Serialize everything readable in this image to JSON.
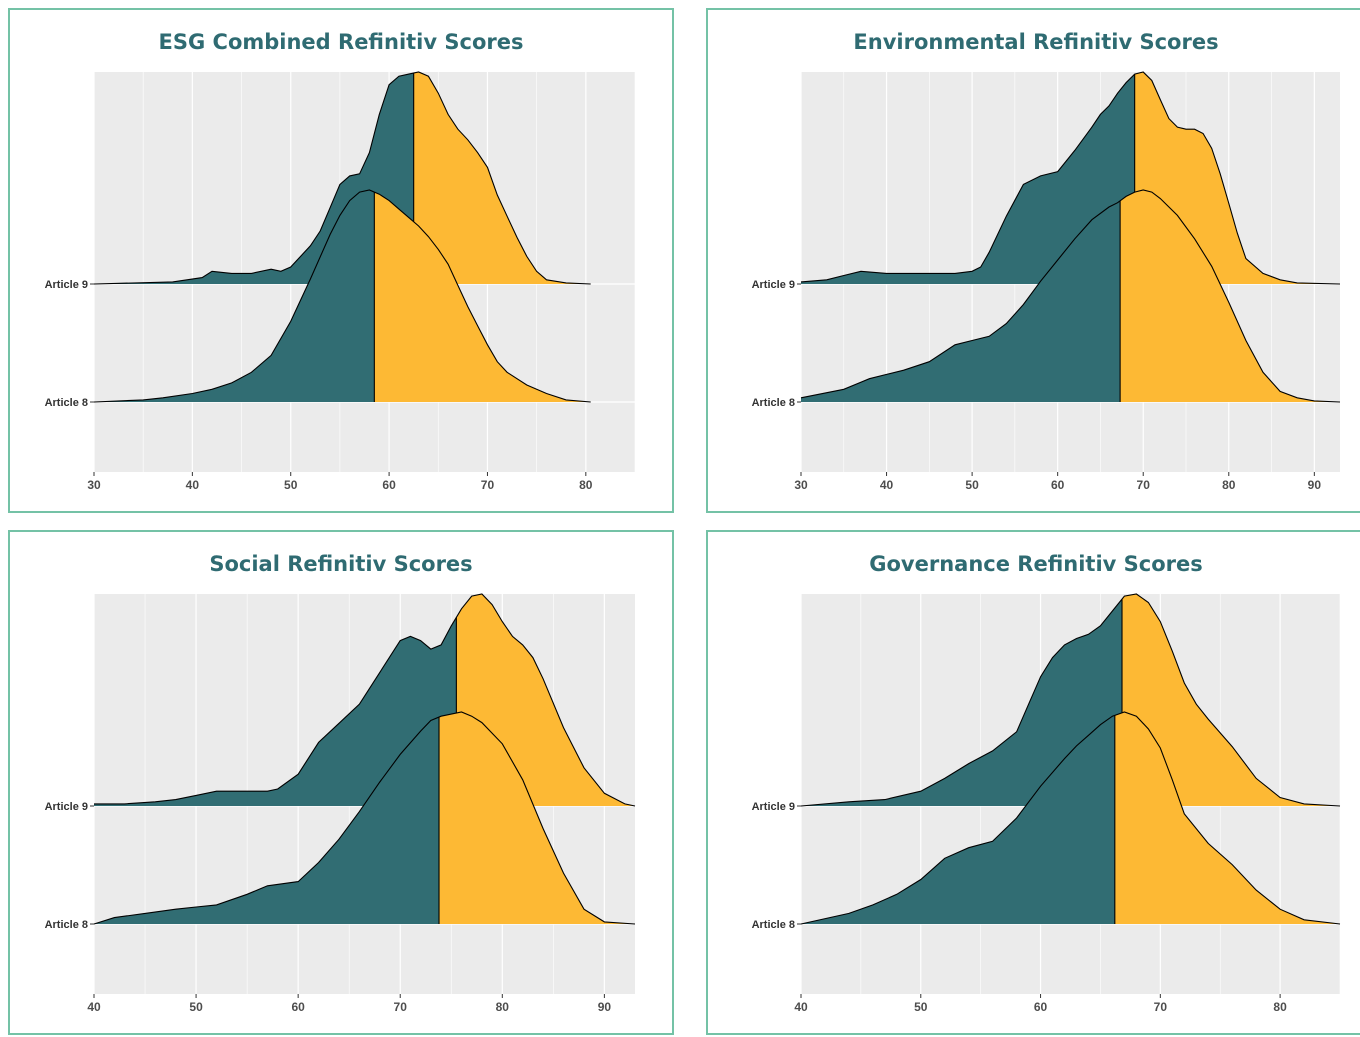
{
  "colors": {
    "low": "#316d73",
    "high": "#fdb934",
    "border": "#74c2a6",
    "title": "#2f6b72",
    "panel_bg": "#ebebeb",
    "grid": "#ffffff"
  },
  "chart_data": [
    {
      "type": "ridgeline",
      "title": "ESG Combined Refinitiv Scores",
      "categories": [
        "Article 9",
        "Article 8"
      ],
      "xlim": [
        30,
        85
      ],
      "xticks": [
        30,
        40,
        50,
        60,
        70,
        80
      ],
      "grid": true,
      "series": [
        {
          "name": "Article 9",
          "split": 62.5,
          "x": [
            30,
            38,
            41,
            42,
            44,
            46,
            48,
            49,
            50,
            52,
            53,
            54,
            55,
            56,
            57,
            58,
            59,
            60,
            61,
            62,
            63,
            64,
            65,
            66,
            67,
            68,
            69,
            70,
            71,
            72,
            73,
            74,
            75,
            76,
            78,
            80.5
          ],
          "y": [
            0,
            0.01,
            0.03,
            0.06,
            0.05,
            0.05,
            0.07,
            0.06,
            0.08,
            0.18,
            0.25,
            0.36,
            0.47,
            0.51,
            0.52,
            0.62,
            0.8,
            0.94,
            0.98,
            0.99,
            1.0,
            0.98,
            0.9,
            0.8,
            0.73,
            0.68,
            0.62,
            0.55,
            0.42,
            0.32,
            0.22,
            0.13,
            0.06,
            0.02,
            0.005,
            0
          ]
        },
        {
          "name": "Article 8",
          "split": 58.5,
          "x": [
            30,
            35,
            37,
            40,
            42,
            44,
            46,
            48,
            50,
            52,
            54,
            55,
            56,
            57,
            58,
            59,
            60,
            61,
            62,
            63,
            64,
            65,
            66,
            67,
            68,
            69,
            70,
            71,
            72,
            74,
            76,
            78,
            80.5
          ],
          "y": [
            0,
            0.01,
            0.02,
            0.04,
            0.06,
            0.09,
            0.14,
            0.22,
            0.38,
            0.58,
            0.79,
            0.88,
            0.95,
            0.99,
            1.0,
            0.98,
            0.95,
            0.91,
            0.87,
            0.83,
            0.78,
            0.72,
            0.65,
            0.55,
            0.45,
            0.36,
            0.27,
            0.19,
            0.14,
            0.08,
            0.04,
            0.01,
            0
          ]
        }
      ]
    },
    {
      "type": "ridgeline",
      "title": "Environmental Refinitiv Scores",
      "categories": [
        "Article 9",
        "Article 8"
      ],
      "xlim": [
        30,
        93
      ],
      "xticks": [
        30,
        40,
        50,
        60,
        70,
        80,
        90
      ],
      "grid": true,
      "series": [
        {
          "name": "Article 9",
          "split": 69,
          "x": [
            30,
            33,
            35,
            37,
            40,
            45,
            48,
            50,
            51,
            52,
            54,
            56,
            58,
            60,
            62,
            64,
            65,
            66,
            67,
            68,
            69,
            70,
            71,
            72,
            73,
            74,
            75,
            76,
            77,
            78,
            79,
            80,
            81,
            82,
            84,
            86,
            88,
            93
          ],
          "y": [
            0.01,
            0.02,
            0.04,
            0.06,
            0.05,
            0.05,
            0.05,
            0.06,
            0.08,
            0.15,
            0.32,
            0.47,
            0.51,
            0.53,
            0.63,
            0.74,
            0.8,
            0.84,
            0.9,
            0.95,
            0.99,
            1.0,
            0.96,
            0.87,
            0.78,
            0.74,
            0.73,
            0.73,
            0.71,
            0.64,
            0.52,
            0.38,
            0.24,
            0.12,
            0.05,
            0.02,
            0.005,
            0
          ]
        },
        {
          "name": "Article 8",
          "split": 67.3,
          "x": [
            30,
            35,
            38,
            40,
            42,
            45,
            48,
            50,
            52,
            54,
            56,
            58,
            60,
            62,
            64,
            66,
            67,
            68,
            69,
            70,
            71,
            72,
            74,
            76,
            78,
            80,
            82,
            84,
            86,
            88,
            90,
            93
          ],
          "y": [
            0.02,
            0.06,
            0.11,
            0.13,
            0.15,
            0.19,
            0.27,
            0.29,
            0.31,
            0.37,
            0.46,
            0.57,
            0.67,
            0.77,
            0.86,
            0.92,
            0.94,
            0.97,
            0.99,
            1.0,
            0.99,
            0.96,
            0.88,
            0.77,
            0.64,
            0.47,
            0.29,
            0.14,
            0.05,
            0.02,
            0.005,
            0
          ]
        }
      ]
    },
    {
      "type": "ridgeline",
      "title": "Social Refinitiv Scores",
      "categories": [
        "Article 9",
        "Article 8"
      ],
      "xlim": [
        40,
        93
      ],
      "xticks": [
        40,
        50,
        60,
        70,
        80,
        90
      ],
      "grid": true,
      "series": [
        {
          "name": "Article 9",
          "split": 75.5,
          "x": [
            40,
            43,
            46,
            48,
            50,
            52,
            55,
            57,
            58,
            60,
            62,
            64,
            66,
            68,
            70,
            71,
            72,
            73,
            74,
            75,
            76,
            77,
            78,
            79,
            80,
            81,
            82,
            83,
            84,
            86,
            88,
            90,
            92,
            93
          ],
          "y": [
            0.01,
            0.01,
            0.02,
            0.03,
            0.05,
            0.07,
            0.07,
            0.07,
            0.08,
            0.15,
            0.3,
            0.39,
            0.48,
            0.63,
            0.78,
            0.8,
            0.78,
            0.74,
            0.76,
            0.85,
            0.93,
            0.99,
            1.0,
            0.95,
            0.87,
            0.8,
            0.76,
            0.7,
            0.6,
            0.37,
            0.18,
            0.06,
            0.01,
            0
          ]
        },
        {
          "name": "Article 8",
          "split": 73.8,
          "x": [
            40,
            42,
            45,
            48,
            50,
            52,
            55,
            57,
            60,
            62,
            64,
            66,
            68,
            70,
            72,
            73,
            74,
            75,
            76,
            77,
            78,
            80,
            82,
            84,
            86,
            88,
            90,
            93
          ],
          "y": [
            0,
            0.03,
            0.05,
            0.07,
            0.08,
            0.09,
            0.14,
            0.18,
            0.2,
            0.29,
            0.4,
            0.53,
            0.67,
            0.8,
            0.91,
            0.96,
            0.98,
            0.99,
            1.0,
            0.98,
            0.95,
            0.85,
            0.68,
            0.45,
            0.24,
            0.07,
            0.01,
            0
          ]
        }
      ]
    },
    {
      "type": "ridgeline",
      "title": "Governance Refinitiv Scores",
      "categories": [
        "Article 9",
        "Article 8"
      ],
      "xlim": [
        40,
        85
      ],
      "xticks": [
        40,
        50,
        60,
        70,
        80
      ],
      "grid": true,
      "series": [
        {
          "name": "Article 9",
          "split": 66.8,
          "x": [
            40,
            44,
            47,
            50,
            52,
            54,
            56,
            58,
            59,
            60,
            61,
            62,
            63,
            64,
            65,
            66,
            67,
            68,
            69,
            70,
            71,
            72,
            73,
            74,
            76,
            78,
            80,
            82,
            85
          ],
          "y": [
            0,
            0.02,
            0.03,
            0.07,
            0.13,
            0.2,
            0.26,
            0.35,
            0.48,
            0.61,
            0.7,
            0.76,
            0.79,
            0.81,
            0.85,
            0.92,
            0.99,
            1.0,
            0.96,
            0.87,
            0.73,
            0.58,
            0.48,
            0.41,
            0.28,
            0.13,
            0.04,
            0.01,
            0
          ]
        },
        {
          "name": "Article 8",
          "split": 66.2,
          "x": [
            40,
            44,
            46,
            48,
            50,
            52,
            54,
            56,
            58,
            60,
            62,
            63,
            64,
            65,
            66,
            67,
            68,
            69,
            70,
            71,
            72,
            74,
            76,
            78,
            80,
            82,
            85
          ],
          "y": [
            0,
            0.05,
            0.09,
            0.14,
            0.21,
            0.31,
            0.36,
            0.39,
            0.5,
            0.65,
            0.78,
            0.84,
            0.89,
            0.94,
            0.98,
            1.0,
            0.98,
            0.92,
            0.83,
            0.68,
            0.52,
            0.38,
            0.28,
            0.16,
            0.07,
            0.02,
            0
          ]
        }
      ]
    }
  ]
}
